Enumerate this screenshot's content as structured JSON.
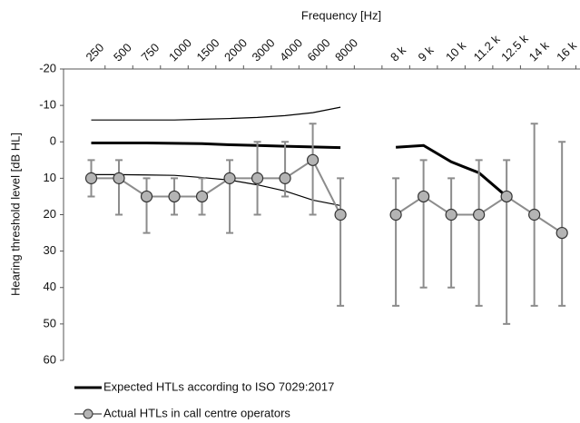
{
  "chart_data": {
    "type": "line",
    "x_label": "Frequency [Hz]",
    "y_label": "Hearing threshold level [dB HL]",
    "categories": [
      "250",
      "500",
      "750",
      "1000",
      "1500",
      "2000",
      "3000",
      "4000",
      "6000",
      "8000",
      null,
      "8 k",
      "9 k",
      "10 k",
      "11.2 k",
      "12.5 k",
      "14 k",
      "16 k"
    ],
    "ylim": [
      -20,
      60
    ],
    "yticks": [
      -20,
      -10,
      0,
      10,
      20,
      30,
      40,
      50,
      60
    ],
    "y_inverted": true,
    "grid": false,
    "legend": "bottom-left",
    "series": [
      {
        "color": "#000000",
        "width": 1.2,
        "values": [
          -6,
          -6,
          -6,
          -6,
          -6.2,
          -6.4,
          -6.7,
          -7.2,
          -8,
          -9.5,
          null,
          null,
          null,
          null,
          null,
          null,
          null,
          null
        ]
      },
      {
        "color": "#000000",
        "width": 1.2,
        "values": [
          9,
          9,
          9.1,
          9.2,
          9.8,
          10.5,
          11.8,
          13.5,
          16,
          17.5,
          null,
          null,
          null,
          null,
          null,
          null,
          null,
          null
        ]
      },
      {
        "name": "Expected HTLs  according to ISO 7029:2017",
        "color": "#000000",
        "width": 3,
        "values": [
          0.3,
          0.3,
          0.3,
          0.4,
          0.5,
          0.8,
          1,
          1.2,
          1.4,
          1.6,
          null,
          1.5,
          1,
          5.5,
          8.5,
          15,
          null,
          null
        ]
      },
      {
        "name": "Actual HTLs in call centre operators",
        "color": "#8c8c8c",
        "marker_fill": "#b4b4b4",
        "width": 2,
        "markers": true,
        "values": [
          10,
          10,
          15,
          15,
          15,
          10,
          10,
          10,
          5,
          20,
          null,
          20,
          15,
          20,
          20,
          15,
          20,
          25
        ],
        "error_low": [
          5,
          5,
          10,
          10,
          10,
          5,
          0,
          0,
          -5,
          10,
          null,
          10,
          5,
          10,
          5,
          5,
          -5,
          0
        ],
        "error_high": [
          15,
          20,
          25,
          20,
          20,
          25,
          20,
          15,
          20,
          45,
          null,
          45,
          40,
          40,
          45,
          50,
          45,
          45
        ]
      }
    ]
  }
}
